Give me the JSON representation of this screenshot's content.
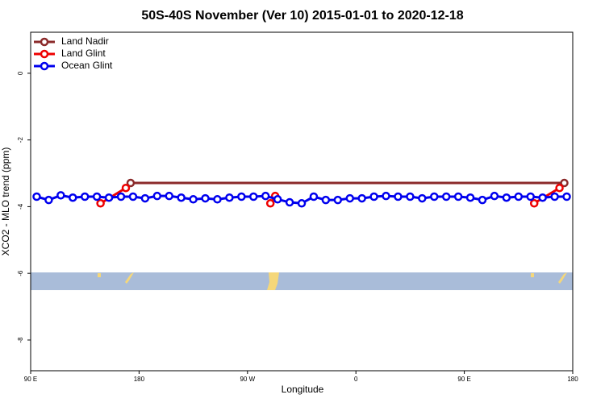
{
  "chart_data": {
    "type": "line",
    "title": "50S-40S November (Ver 10)   2015-01-01 to 2020-12-18",
    "xlabel": "Longitude",
    "ylabel": "XCO2 - MLO trend (ppm)",
    "xlim": [
      90,
      540
    ],
    "ylim": [
      -8.92,
      1.23
    ],
    "xticks": [
      {
        "value": 90,
        "label": "90 E"
      },
      {
        "value": 180,
        "label": "180"
      },
      {
        "value": 270,
        "label": "90 W"
      },
      {
        "value": 360,
        "label": "0"
      },
      {
        "value": 450,
        "label": "90 E"
      },
      {
        "value": 540,
        "label": "180"
      }
    ],
    "yticks": [
      0,
      -2,
      -4,
      -6,
      -8
    ],
    "legend": "upper left",
    "series": [
      {
        "name": "Land Nadir",
        "color": "#8b2a2a",
        "x": [
          173,
          533
        ],
        "values": [
          -3.29,
          -3.29
        ]
      },
      {
        "name": "Land Glint",
        "color": "#ee0000",
        "x": [
          148,
          169,
          null,
          289,
          293,
          null,
          508,
          529
        ],
        "values": [
          -3.9,
          -3.44,
          null,
          -3.9,
          -3.68,
          null,
          -3.9,
          -3.44
        ]
      },
      {
        "name": "Ocean Glint",
        "color": "#0000ee",
        "x": [
          95,
          105,
          115,
          125,
          135,
          145,
          155,
          165,
          175,
          185,
          195,
          205,
          215,
          225,
          235,
          245,
          255,
          265,
          275,
          285,
          295,
          305,
          315,
          325,
          335,
          345,
          355,
          365,
          375,
          385,
          395,
          405,
          415,
          425,
          435,
          445,
          455,
          465,
          475,
          485,
          495,
          505,
          515,
          525,
          535
        ],
        "values": [
          -3.7,
          -3.8,
          -3.66,
          -3.73,
          -3.7,
          -3.7,
          -3.73,
          -3.7,
          -3.7,
          -3.75,
          -3.68,
          -3.68,
          -3.73,
          -3.78,
          -3.75,
          -3.78,
          -3.73,
          -3.7,
          -3.7,
          -3.68,
          -3.78,
          -3.87,
          -3.9,
          -3.7,
          -3.8,
          -3.8,
          -3.75,
          -3.75,
          -3.7,
          -3.68,
          -3.7,
          -3.7,
          -3.75,
          -3.7,
          -3.7,
          -3.7,
          -3.73,
          -3.8,
          -3.68,
          -3.73,
          -3.7,
          -3.7,
          -3.73,
          -3.7,
          -3.7
        ]
      }
    ]
  }
}
